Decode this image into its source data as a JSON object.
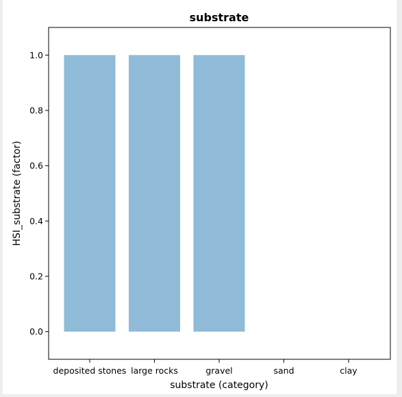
{
  "chart_data": {
    "type": "bar",
    "title": "substrate",
    "xlabel": "substrate (category)",
    "ylabel": "HSI_substrate (factor)",
    "categories": [
      "deposited stones",
      "large rocks",
      "gravel",
      "sand",
      "clay"
    ],
    "values": [
      1.0,
      1.0,
      1.0,
      0.0,
      0.0
    ],
    "ylim": [
      -0.1,
      1.1
    ],
    "yticks": [
      "0.0",
      "0.2",
      "0.4",
      "0.6",
      "0.8",
      "1.0"
    ],
    "bar_color": "#8fbbd9",
    "grid": false,
    "legend": "none"
  }
}
